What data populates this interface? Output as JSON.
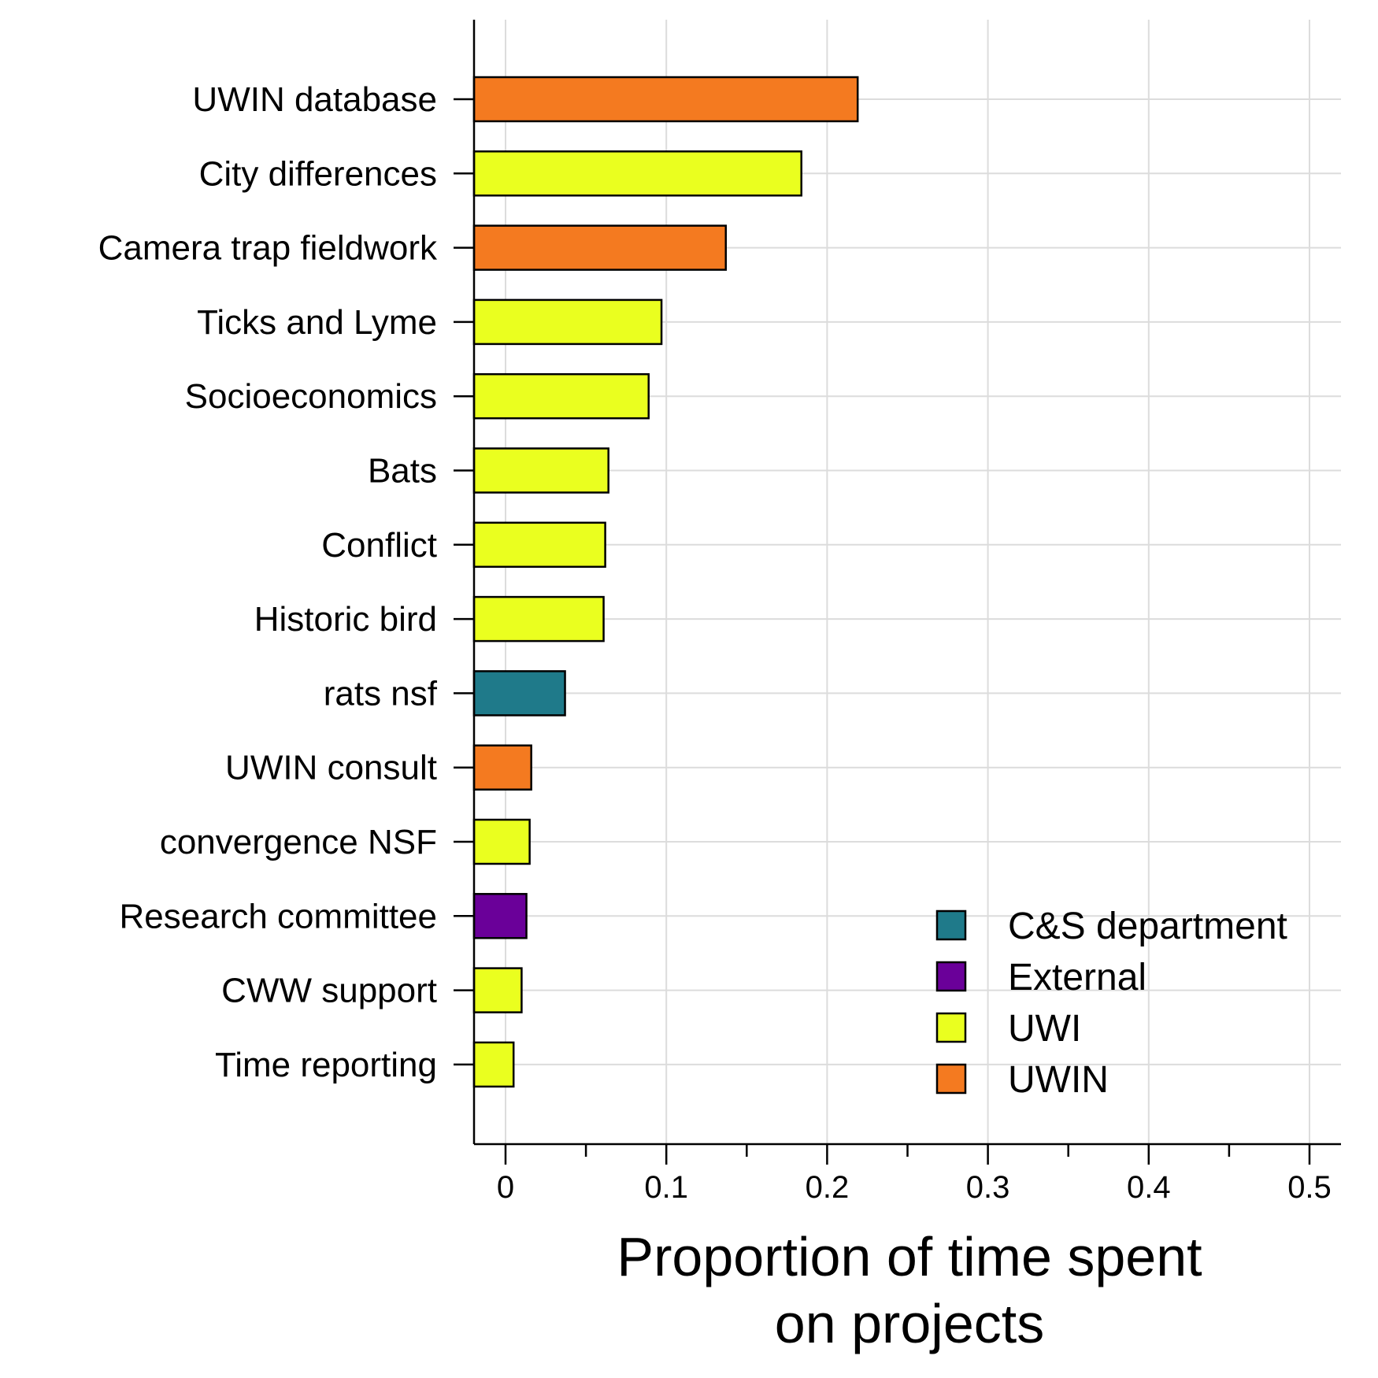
{
  "chart_data": {
    "type": "bar",
    "orientation": "horizontal",
    "xlabel_lines": [
      "Proportion of time spent",
      "on projects"
    ],
    "xlim": [
      -0.02,
      0.52
    ],
    "xticks": [
      0,
      0.1,
      0.2,
      0.3,
      0.4,
      0.5
    ],
    "xtick_labels": [
      "0",
      "0.1",
      "0.2",
      "0.3",
      "0.4",
      "0.5"
    ],
    "grid": true,
    "legend_position": "bottom-right",
    "groups": [
      {
        "name": "C&S department",
        "color": "#1f7a8a"
      },
      {
        "name": "External",
        "color": "#6a0099"
      },
      {
        "name": "UWI",
        "color": "#eaff1f"
      },
      {
        "name": "UWIN",
        "color": "#f47a20"
      }
    ],
    "bars": [
      {
        "label": "UWIN database",
        "value": 0.219,
        "group": "UWIN"
      },
      {
        "label": "City differences",
        "value": 0.184,
        "group": "UWI"
      },
      {
        "label": "Camera trap fieldwork",
        "value": 0.137,
        "group": "UWIN"
      },
      {
        "label": "Ticks and Lyme",
        "value": 0.097,
        "group": "UWI"
      },
      {
        "label": "Socioeconomics",
        "value": 0.089,
        "group": "UWI"
      },
      {
        "label": "Bats",
        "value": 0.064,
        "group": "UWI"
      },
      {
        "label": "Conflict",
        "value": 0.062,
        "group": "UWI"
      },
      {
        "label": "Historic bird",
        "value": 0.061,
        "group": "UWI"
      },
      {
        "label": "rats nsf",
        "value": 0.037,
        "group": "C&S department"
      },
      {
        "label": "UWIN consult",
        "value": 0.016,
        "group": "UWIN"
      },
      {
        "label": "convergence NSF",
        "value": 0.015,
        "group": "UWI"
      },
      {
        "label": "Research committee",
        "value": 0.013,
        "group": "External"
      },
      {
        "label": "CWW support",
        "value": 0.01,
        "group": "UWI"
      },
      {
        "label": "Time reporting",
        "value": 0.005,
        "group": "UWI"
      }
    ]
  }
}
